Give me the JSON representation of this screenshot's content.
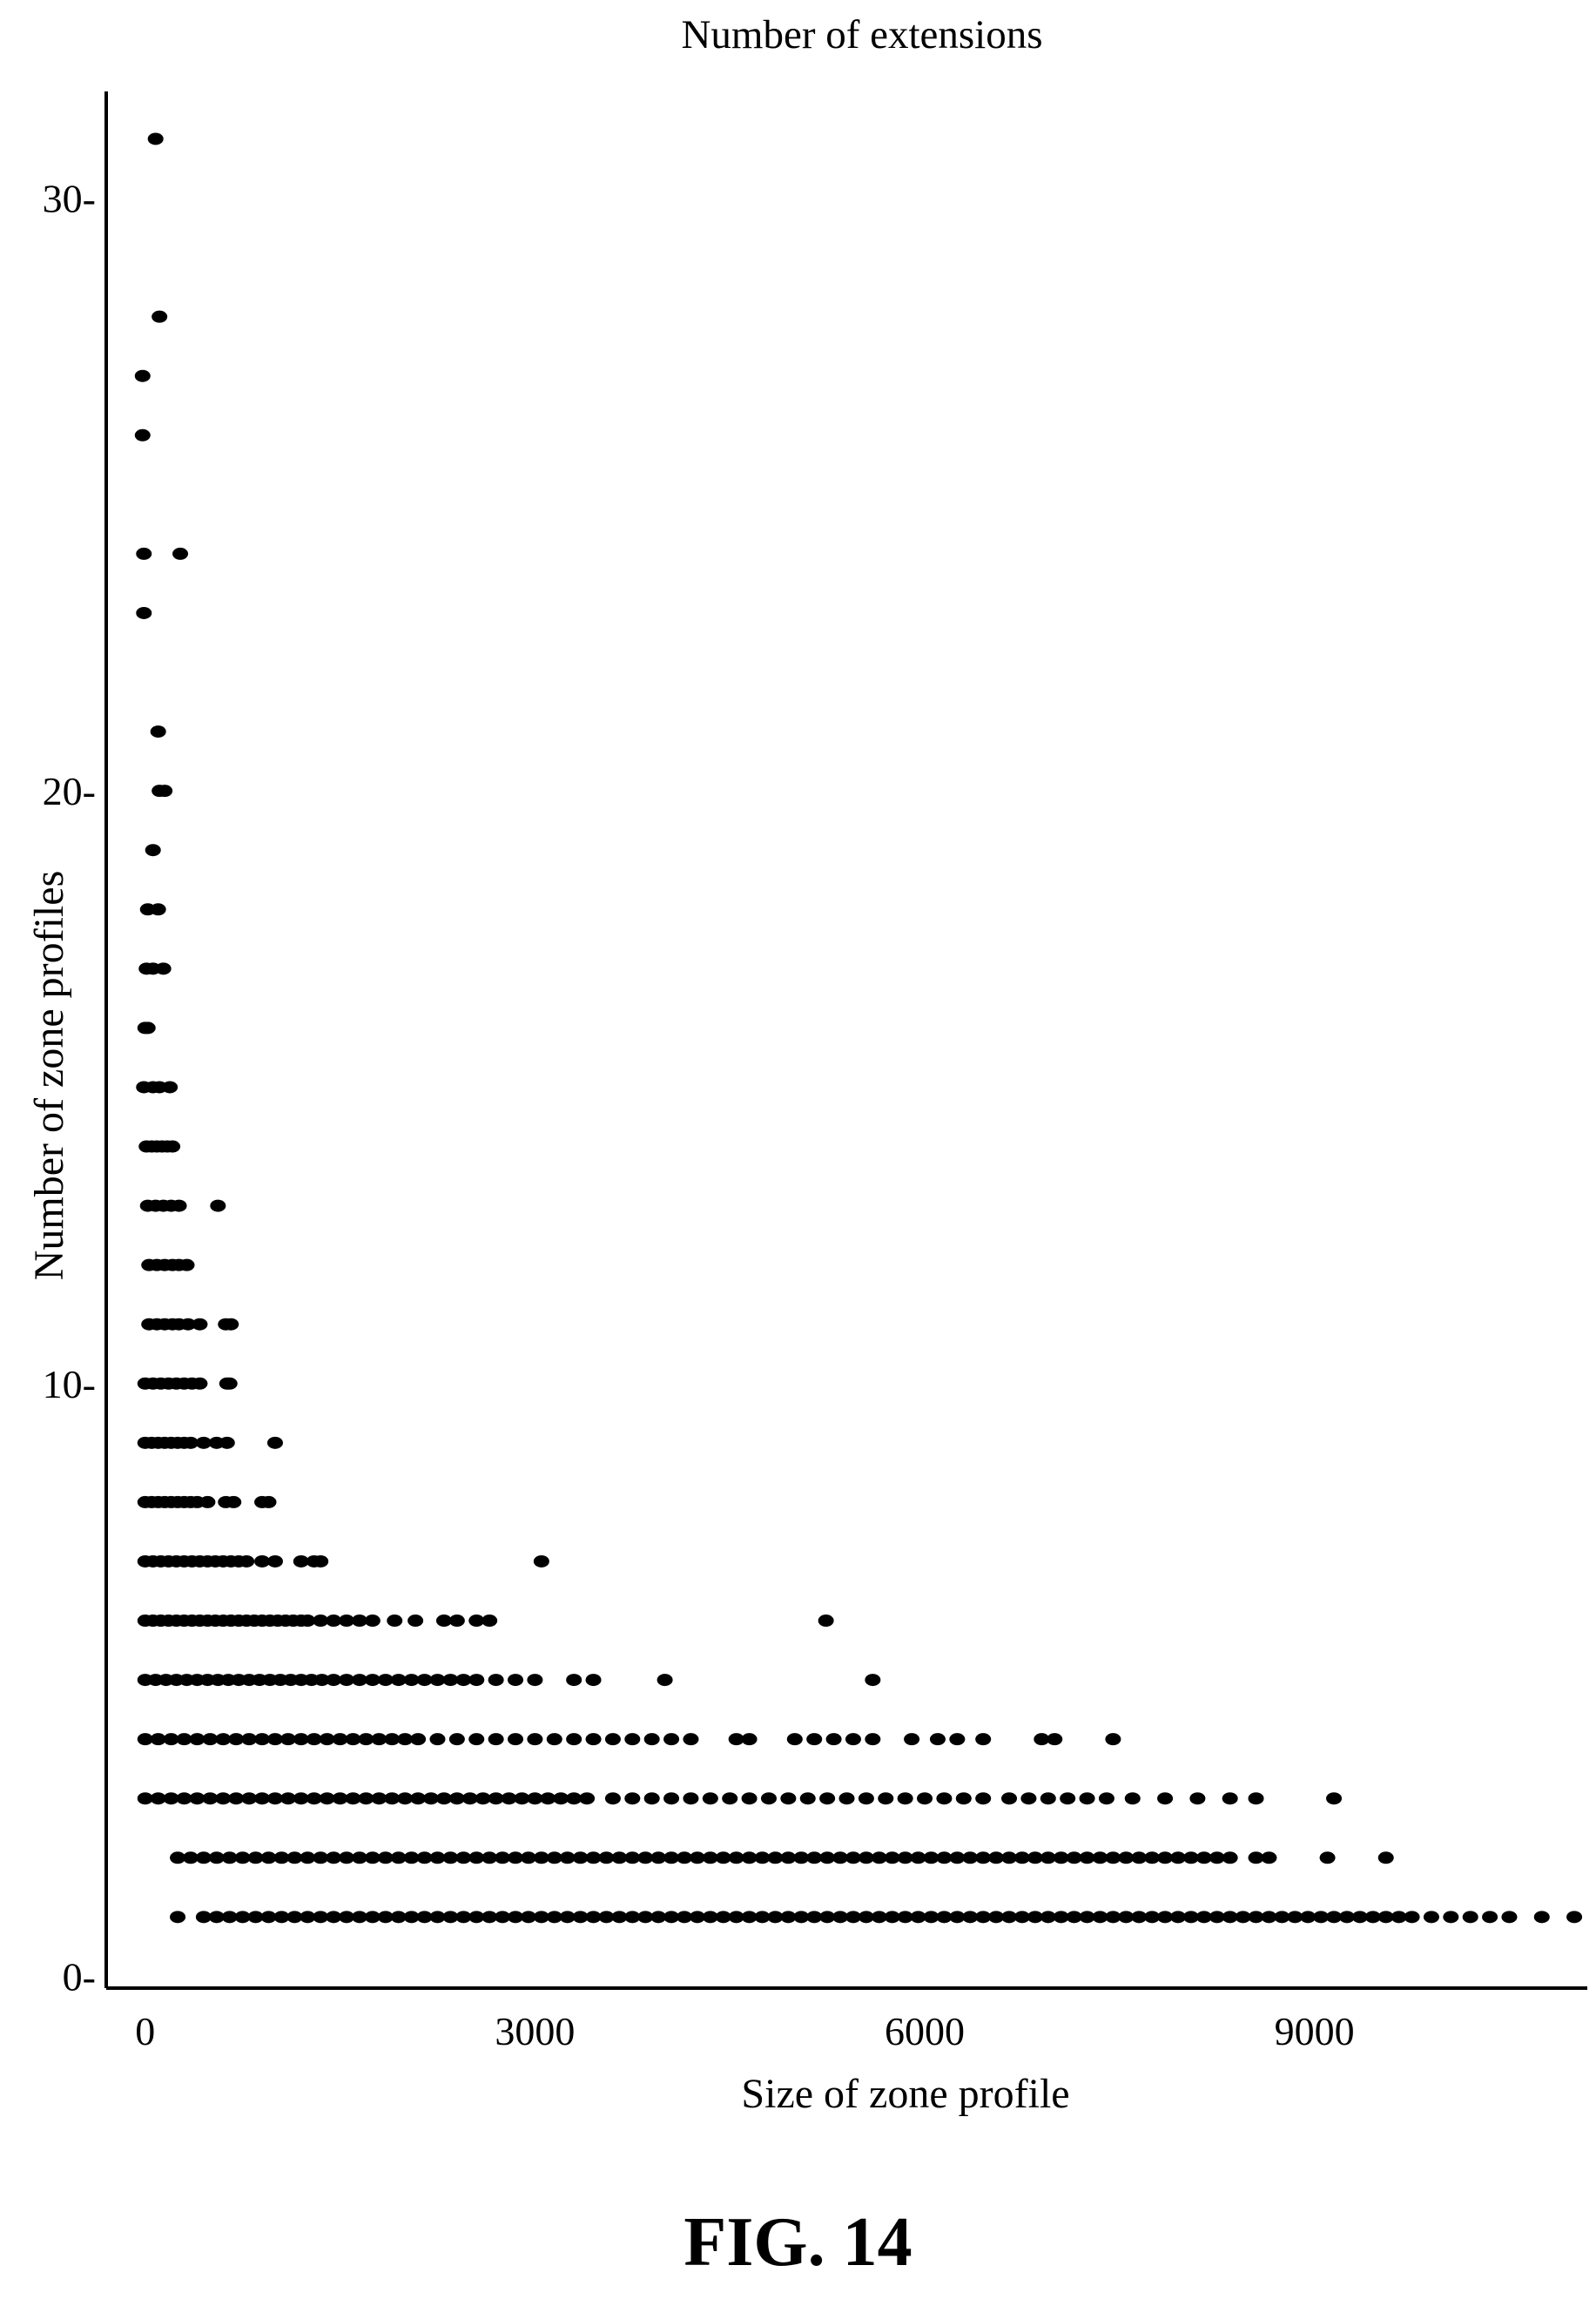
{
  "chart_data": {
    "type": "scatter",
    "title": "Number of extensions",
    "xlabel": "Size of zone profile",
    "ylabel": "Number of zone profiles",
    "xlim": [
      -300,
      11100
    ],
    "ylim": [
      -0.2,
      31.8
    ],
    "x_ticks": [
      {
        "value": 0,
        "label": "0"
      },
      {
        "value": 3000,
        "label": "3000"
      },
      {
        "value": 6000,
        "label": "6000"
      },
      {
        "value": 9000,
        "label": "9000"
      }
    ],
    "y_ticks": [
      {
        "value": 0,
        "label": "0-"
      },
      {
        "value": 10,
        "label": "10-"
      },
      {
        "value": 20,
        "label": "20-"
      },
      {
        "value": 30,
        "label": "30-"
      }
    ],
    "grid": false,
    "marker_color": "#000000",
    "rows": [
      {
        "y": 31,
        "points": [
          80
        ]
      },
      {
        "y": 28,
        "points": [
          110
        ]
      },
      {
        "y": 27,
        "points": [
          -20
        ]
      },
      {
        "y": 26,
        "points": [
          -20
        ]
      },
      {
        "y": 24,
        "points": [
          -10,
          270
        ]
      },
      {
        "y": 23,
        "points": [
          -10
        ]
      },
      {
        "y": 21,
        "points": [
          100
        ]
      },
      {
        "y": 20,
        "points": [
          110,
          150
        ]
      },
      {
        "y": 19,
        "points": [
          60
        ]
      },
      {
        "y": 18,
        "points": [
          20,
          100
        ]
      },
      {
        "y": 17,
        "points": [
          10,
          60,
          140
        ]
      },
      {
        "y": 16,
        "points": [
          0,
          20
        ]
      },
      {
        "y": 15,
        "points": [
          -10,
          60,
          110,
          190
        ]
      },
      {
        "y": 14,
        "points": [
          10,
          50,
          90,
          130,
          170,
          210
        ]
      },
      {
        "y": 13,
        "points": [
          20,
          80,
          140,
          200,
          260,
          560
        ]
      },
      {
        "y": 12,
        "points": [
          30,
          90,
          150,
          210,
          260,
          320
        ]
      },
      {
        "y": 11,
        "points": [
          30,
          90,
          150,
          210,
          260,
          330,
          420,
          620,
          660
        ]
      },
      {
        "y": 10,
        "points": [
          0,
          60,
          120,
          180,
          240,
          300,
          360,
          420,
          630,
          650
        ]
      },
      {
        "y": 9,
        "points": [
          0,
          50,
          100,
          150,
          200,
          250,
          300,
          350,
          450,
          550,
          630,
          1000
        ]
      },
      {
        "y": 8,
        "points": [
          0,
          50,
          100,
          150,
          200,
          250,
          300,
          350,
          400,
          480,
          620,
          680,
          900,
          950
        ]
      },
      {
        "y": 7,
        "points": [
          0,
          60,
          120,
          180,
          240,
          300,
          360,
          420,
          480,
          540,
          600,
          660,
          720,
          780,
          900,
          1000,
          1200,
          1300,
          1350,
          3050
        ]
      },
      {
        "y": 6,
        "points": [
          0,
          60,
          120,
          180,
          240,
          300,
          360,
          420,
          480,
          540,
          600,
          660,
          720,
          780,
          840,
          900,
          960,
          1020,
          1080,
          1140,
          1200,
          1250,
          1350,
          1450,
          1550,
          1650,
          1750,
          1920,
          2080,
          2300,
          2400,
          2550,
          2650,
          5240
        ]
      },
      {
        "y": 5,
        "points": [
          0,
          80,
          160,
          240,
          320,
          400,
          480,
          560,
          640,
          720,
          800,
          880,
          960,
          1040,
          1120,
          1200,
          1280,
          1360,
          1450,
          1550,
          1650,
          1750,
          1850,
          1950,
          2050,
          2150,
          2250,
          2350,
          2450,
          2550,
          2700,
          2850,
          3000,
          3300,
          3450,
          4000,
          5600
        ]
      },
      {
        "y": 4,
        "points": [
          0,
          100,
          200,
          300,
          400,
          500,
          600,
          700,
          800,
          900,
          1000,
          1100,
          1200,
          1300,
          1400,
          1500,
          1600,
          1700,
          1800,
          1900,
          2000,
          2100,
          2250,
          2400,
          2550,
          2700,
          2850,
          3000,
          3150,
          3300,
          3450,
          3600,
          3750,
          3900,
          4050,
          4200,
          4550,
          4650,
          5000,
          5150,
          5300,
          5450,
          5600,
          5900,
          6100,
          6250,
          6450,
          6900,
          7000,
          7450
        ]
      },
      {
        "y": 3,
        "points": [
          0,
          100,
          200,
          300,
          400,
          500,
          600,
          700,
          800,
          900,
          1000,
          1100,
          1200,
          1300,
          1400,
          1500,
          1600,
          1700,
          1800,
          1900,
          2000,
          2100,
          2200,
          2300,
          2400,
          2500,
          2600,
          2700,
          2800,
          2900,
          3000,
          3100,
          3200,
          3300,
          3400,
          3600,
          3750,
          3900,
          4050,
          4200,
          4350,
          4500,
          4650,
          4800,
          4950,
          5100,
          5250,
          5400,
          5550,
          5700,
          5850,
          6000,
          6150,
          6300,
          6450,
          6650,
          6800,
          6950,
          7100,
          7250,
          7400,
          7600,
          7850,
          8100,
          8350,
          8550,
          9150
        ]
      },
      {
        "y": 2,
        "points": [
          250,
          350,
          450,
          550,
          650,
          750,
          850,
          950,
          1050,
          1150,
          1250,
          1350,
          1450,
          1550,
          1650,
          1750,
          1850,
          1950,
          2050,
          2150,
          2250,
          2350,
          2450,
          2550,
          2650,
          2750,
          2850,
          2950,
          3050,
          3150,
          3250,
          3350,
          3450,
          3550,
          3650,
          3750,
          3850,
          3950,
          4050,
          4150,
          4250,
          4350,
          4450,
          4550,
          4650,
          4750,
          4850,
          4950,
          5050,
          5150,
          5250,
          5350,
          5450,
          5550,
          5650,
          5750,
          5850,
          5950,
          6050,
          6150,
          6250,
          6350,
          6450,
          6550,
          6650,
          6750,
          6850,
          6950,
          7050,
          7150,
          7250,
          7350,
          7450,
          7550,
          7650,
          7750,
          7850,
          7950,
          8050,
          8150,
          8250,
          8350,
          8550,
          8650,
          9100,
          9550
        ]
      },
      {
        "y": 1,
        "points": [
          250,
          450,
          550,
          650,
          750,
          850,
          950,
          1050,
          1150,
          1250,
          1350,
          1450,
          1550,
          1650,
          1750,
          1850,
          1950,
          2050,
          2150,
          2250,
          2350,
          2450,
          2550,
          2650,
          2750,
          2850,
          2950,
          3050,
          3150,
          3250,
          3350,
          3450,
          3550,
          3650,
          3750,
          3850,
          3950,
          4050,
          4150,
          4250,
          4350,
          4450,
          4550,
          4650,
          4750,
          4850,
          4950,
          5050,
          5150,
          5250,
          5350,
          5450,
          5550,
          5650,
          5750,
          5850,
          5950,
          6050,
          6150,
          6250,
          6350,
          6450,
          6550,
          6650,
          6750,
          6850,
          6950,
          7050,
          7150,
          7250,
          7350,
          7450,
          7550,
          7650,
          7750,
          7850,
          7950,
          8050,
          8150,
          8250,
          8350,
          8450,
          8550,
          8650,
          8750,
          8850,
          8950,
          9050,
          9150,
          9250,
          9350,
          9450,
          9550,
          9650,
          9750,
          9900,
          10050,
          10200,
          10350,
          10500,
          10750,
          11000
        ]
      }
    ]
  },
  "figure_label": "FIG. 14"
}
